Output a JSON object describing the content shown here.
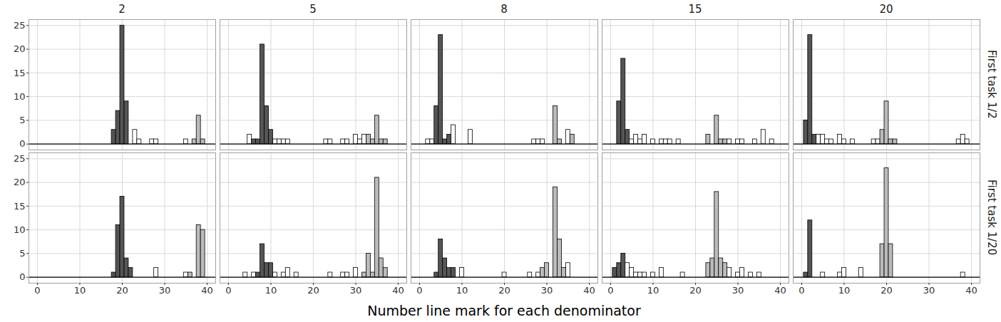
{
  "chart_data": {
    "type": "histogram",
    "x_label": "Number line mark for each denominator",
    "columns": [
      "2",
      "5",
      "8",
      "15",
      "20"
    ],
    "rows": [
      "First task 1/2",
      "First task 1/20"
    ],
    "xlim": [
      -2,
      42
    ],
    "xticks": [
      0,
      10,
      20,
      30,
      40
    ],
    "ylim": [
      -1.25,
      26.25
    ],
    "yticks": [
      0,
      5,
      10,
      15,
      20,
      25
    ],
    "grid": true,
    "panels": [
      {
        "column": "2",
        "row": "First task 1/2",
        "x": [
          18,
          19,
          20,
          21,
          23,
          24,
          27,
          28,
          35,
          37,
          38,
          39
        ],
        "values": [
          3,
          7,
          25,
          9,
          3,
          1,
          1,
          1,
          1,
          1,
          6,
          1
        ],
        "colors": [
          "#555555",
          "#555555",
          "#555555",
          "#555555",
          "#ffffff",
          "#ffffff",
          "#ffffff",
          "#ffffff",
          "#ffffff",
          "#bbbbbb",
          "#bbbbbb",
          "#bbbbbb"
        ]
      },
      {
        "column": "5",
        "row": "First task 1/2",
        "x": [
          5,
          6,
          7,
          8,
          9,
          10,
          11,
          12,
          13,
          14,
          23,
          24,
          27,
          28,
          30,
          31,
          32,
          33,
          34,
          35,
          36,
          37
        ],
        "values": [
          2,
          1,
          1,
          21,
          8,
          3,
          1,
          1,
          1,
          1,
          1,
          1,
          1,
          1,
          2,
          1,
          2,
          2,
          1,
          6,
          1,
          1
        ],
        "colors": [
          "#ffffff",
          "#555555",
          "#555555",
          "#555555",
          "#555555",
          "#555555",
          "#ffffff",
          "#ffffff",
          "#ffffff",
          "#ffffff",
          "#ffffff",
          "#ffffff",
          "#ffffff",
          "#ffffff",
          "#ffffff",
          "#ffffff",
          "#ffffff",
          "#bbbbbb",
          "#bbbbbb",
          "#bbbbbb",
          "#bbbbbb",
          "#bbbbbb"
        ]
      },
      {
        "column": "8",
        "row": "First task 1/2",
        "x": [
          2,
          3,
          4,
          5,
          6,
          7,
          8,
          12,
          27,
          28,
          29,
          32,
          33,
          35,
          36
        ],
        "values": [
          1,
          1,
          8,
          23,
          1,
          2,
          4,
          3,
          1,
          1,
          1,
          8,
          1,
          3,
          2
        ],
        "colors": [
          "#ffffff",
          "#ffffff",
          "#555555",
          "#555555",
          "#555555",
          "#555555",
          "#ffffff",
          "#ffffff",
          "#ffffff",
          "#ffffff",
          "#ffffff",
          "#bbbbbb",
          "#bbbbbb",
          "#ffffff",
          "#bbbbbb"
        ]
      },
      {
        "column": "15",
        "row": "First task 1/2",
        "x": [
          2,
          3,
          4,
          5,
          6,
          7,
          8,
          10,
          12,
          13,
          14,
          16,
          23,
          25,
          26,
          27,
          28,
          30,
          31,
          34,
          36,
          38
        ],
        "values": [
          9,
          18,
          3,
          1,
          2,
          1,
          2,
          1,
          1,
          1,
          1,
          1,
          2,
          6,
          1,
          1,
          1,
          1,
          1,
          1,
          3,
          1
        ],
        "colors": [
          "#555555",
          "#555555",
          "#555555",
          "#ffffff",
          "#ffffff",
          "#ffffff",
          "#ffffff",
          "#ffffff",
          "#ffffff",
          "#ffffff",
          "#ffffff",
          "#ffffff",
          "#bbbbbb",
          "#bbbbbb",
          "#bbbbbb",
          "#bbbbbb",
          "#ffffff",
          "#ffffff",
          "#ffffff",
          "#ffffff",
          "#ffffff",
          "#ffffff"
        ]
      },
      {
        "column": "20",
        "row": "First task 1/2",
        "x": [
          1,
          2,
          3,
          4,
          5,
          6,
          7,
          9,
          10,
          12,
          17,
          18,
          19,
          20,
          21,
          22,
          37,
          38,
          39
        ],
        "values": [
          5,
          23,
          2,
          2,
          2,
          1,
          1,
          2,
          1,
          1,
          1,
          1,
          3,
          9,
          1,
          1,
          1,
          2,
          1
        ],
        "colors": [
          "#555555",
          "#555555",
          "#555555",
          "#ffffff",
          "#ffffff",
          "#ffffff",
          "#ffffff",
          "#ffffff",
          "#ffffff",
          "#ffffff",
          "#ffffff",
          "#ffffff",
          "#bbbbbb",
          "#bbbbbb",
          "#bbbbbb",
          "#bbbbbb",
          "#ffffff",
          "#ffffff",
          "#ffffff"
        ]
      },
      {
        "column": "2",
        "row": "First task 1/20",
        "x": [
          18,
          19,
          20,
          21,
          22,
          28,
          35,
          36,
          38,
          39
        ],
        "values": [
          1,
          11,
          17,
          4,
          2,
          2,
          1,
          1,
          11,
          10
        ],
        "colors": [
          "#555555",
          "#555555",
          "#555555",
          "#555555",
          "#555555",
          "#ffffff",
          "#ffffff",
          "#bbbbbb",
          "#bbbbbb",
          "#bbbbbb"
        ]
      },
      {
        "column": "5",
        "row": "First task 1/20",
        "x": [
          4,
          6,
          7,
          8,
          9,
          10,
          11,
          13,
          14,
          16,
          24,
          27,
          28,
          30,
          32,
          33,
          34,
          35,
          36,
          37
        ],
        "values": [
          1,
          1,
          1,
          7,
          3,
          3,
          1,
          1,
          2,
          1,
          1,
          1,
          1,
          2,
          1,
          5,
          1,
          21,
          4,
          2
        ],
        "colors": [
          "#ffffff",
          "#ffffff",
          "#555555",
          "#555555",
          "#555555",
          "#555555",
          "#ffffff",
          "#ffffff",
          "#ffffff",
          "#ffffff",
          "#ffffff",
          "#ffffff",
          "#ffffff",
          "#ffffff",
          "#bbbbbb",
          "#bbbbbb",
          "#bbbbbb",
          "#bbbbbb",
          "#bbbbbb",
          "#bbbbbb"
        ]
      },
      {
        "column": "8",
        "row": "First task 1/20",
        "x": [
          4,
          5,
          6,
          7,
          8,
          10,
          20,
          26,
          28,
          29,
          30,
          32,
          33,
          34,
          35
        ],
        "values": [
          1,
          8,
          4,
          2,
          2,
          2,
          1,
          1,
          1,
          2,
          3,
          19,
          8,
          2,
          3
        ],
        "colors": [
          "#555555",
          "#555555",
          "#555555",
          "#555555",
          "#555555",
          "#ffffff",
          "#ffffff",
          "#ffffff",
          "#ffffff",
          "#bbbbbb",
          "#bbbbbb",
          "#bbbbbb",
          "#bbbbbb",
          "#bbbbbb",
          "#ffffff"
        ]
      },
      {
        "column": "15",
        "row": "First task 1/20",
        "x": [
          1,
          2,
          3,
          4,
          5,
          6,
          7,
          8,
          10,
          12,
          17,
          23,
          24,
          25,
          26,
          27,
          28,
          30,
          31,
          33,
          35
        ],
        "values": [
          2,
          3,
          5,
          3,
          2,
          1,
          1,
          1,
          1,
          2,
          1,
          3,
          4,
          18,
          4,
          3,
          2,
          1,
          2,
          1,
          1
        ],
        "colors": [
          "#555555",
          "#555555",
          "#555555",
          "#ffffff",
          "#ffffff",
          "#ffffff",
          "#ffffff",
          "#ffffff",
          "#ffffff",
          "#ffffff",
          "#ffffff",
          "#bbbbbb",
          "#bbbbbb",
          "#bbbbbb",
          "#bbbbbb",
          "#bbbbbb",
          "#ffffff",
          "#ffffff",
          "#ffffff",
          "#ffffff",
          "#ffffff"
        ]
      },
      {
        "column": "20",
        "row": "First task 1/20",
        "x": [
          1,
          2,
          5,
          9,
          10,
          14,
          19,
          20,
          21,
          38
        ],
        "values": [
          1,
          12,
          1,
          1,
          2,
          2,
          7,
          23,
          7,
          1
        ],
        "colors": [
          "#555555",
          "#555555",
          "#ffffff",
          "#ffffff",
          "#ffffff",
          "#ffffff",
          "#bbbbbb",
          "#bbbbbb",
          "#bbbbbb",
          "#ffffff"
        ]
      }
    ]
  }
}
